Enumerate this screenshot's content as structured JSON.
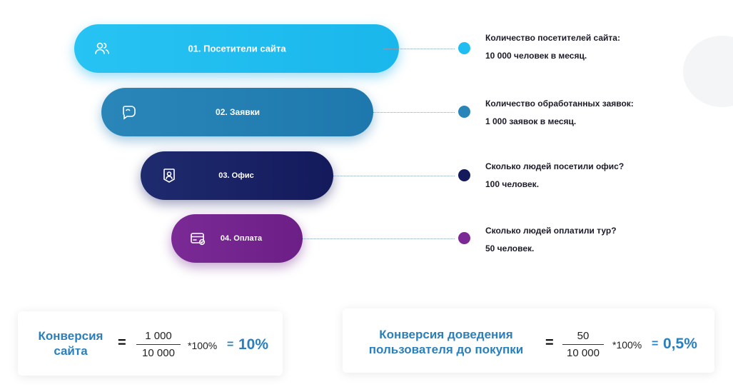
{
  "funnel": [
    {
      "label": "01. Посетители сайта",
      "icon": "users-icon",
      "color": "#1ab7ec",
      "info_title": "Количество посетителей сайта:",
      "info_value": "10 000 человек в месяц."
    },
    {
      "label": "02. Заявки",
      "icon": "chat-icon",
      "color": "#1e78ad",
      "info_title": "Количество обработанных заявок:",
      "info_value": "1 000 заявок в месяц."
    },
    {
      "label": "03. Офис",
      "icon": "person-badge-icon",
      "color": "#141a5c",
      "info_title": "Сколько людей посетили офис?",
      "info_value": "100 человек."
    },
    {
      "label": "04. Оплата",
      "icon": "card-check-icon",
      "color": "#6c1f86",
      "info_title": "Сколько людей оплатили тур?",
      "info_value": "50 человек."
    }
  ],
  "formulas": [
    {
      "title_line1": "Конверсия",
      "title_line2": "сайта",
      "equals": "=",
      "numerator": "1 000",
      "denominator": "10 000",
      "multiplier": "*100%",
      "equals2": "=",
      "result": "10%"
    },
    {
      "title_line1": "Конверсия доведения",
      "title_line2": "пользователя до покупки",
      "equals": "=",
      "numerator": "50",
      "denominator": "10 000",
      "multiplier": "*100%",
      "equals2": "=",
      "result": "0,5%"
    }
  ]
}
